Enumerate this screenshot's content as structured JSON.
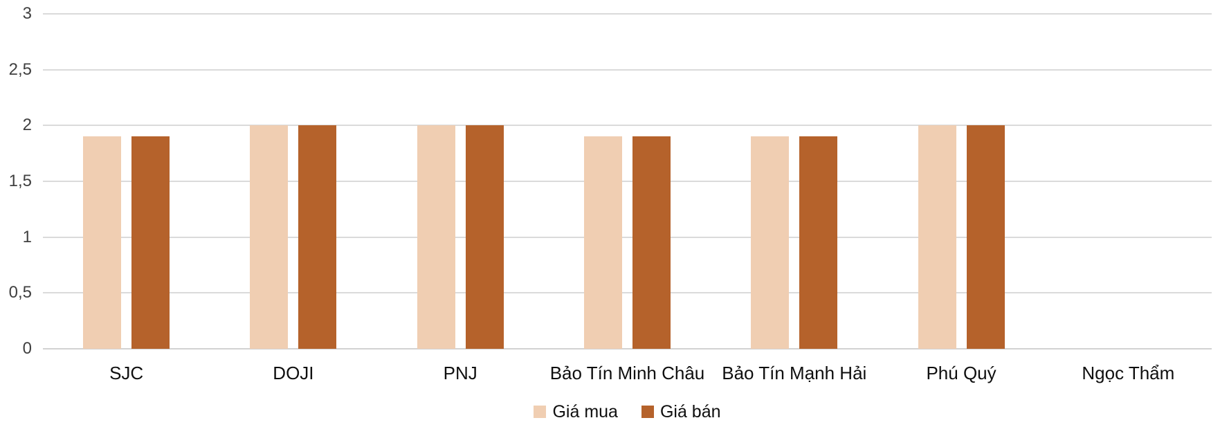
{
  "chart_data": {
    "type": "bar",
    "title": "",
    "xlabel": "",
    "ylabel": "",
    "categories": [
      "SJC",
      "DOJI",
      "PNJ",
      "Bảo Tín Minh Châu",
      "Bảo Tín Mạnh Hải",
      "Phú Quý",
      "Ngọc Thẩm"
    ],
    "series": [
      {
        "name": "Giá mua",
        "color": "#F0CEB2",
        "values": [
          1.9,
          2,
          2,
          1.9,
          1.9,
          2,
          0
        ]
      },
      {
        "name": "Giá bán",
        "color": "#B5622B",
        "values": [
          1.9,
          2,
          2,
          1.9,
          1.9,
          2,
          0
        ]
      }
    ],
    "ylim": [
      0,
      3
    ],
    "yticks": [
      {
        "value": 0,
        "label": "0"
      },
      {
        "value": 0.5,
        "label": "0,5"
      },
      {
        "value": 1,
        "label": "1"
      },
      {
        "value": 1.5,
        "label": "1,5"
      },
      {
        "value": 2,
        "label": "2"
      },
      {
        "value": 2.5,
        "label": "2,5"
      },
      {
        "value": 3,
        "label": "3"
      }
    ],
    "grid": true,
    "legend_position": "bottom",
    "colors": {
      "gridline": "#DADADA",
      "axis_label": "#404040",
      "category_label": "#0f0f0f"
    }
  }
}
